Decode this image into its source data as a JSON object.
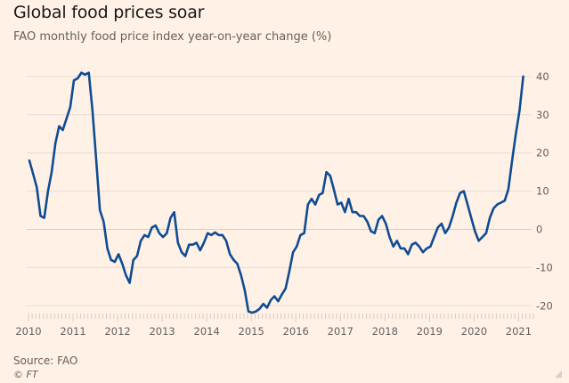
{
  "header": {
    "title": "Global food prices soar",
    "subtitle": "FAO monthly food price index year-on-year change (%)"
  },
  "footer": {
    "source": "Source: FAO",
    "copyright": "© FT"
  },
  "colors": {
    "background": "#fff1e5",
    "line": "#0f4c93",
    "grid": "#e6ddd4",
    "zero_line": "#d4ccc3",
    "text": "#66605c"
  },
  "chart_data": {
    "type": "line",
    "title": "Global food prices soar",
    "subtitle": "FAO monthly food price index year-on-year change (%)",
    "xlabel": "",
    "ylabel": "",
    "ylim": [
      -22,
      42
    ],
    "yticks": [
      40,
      30,
      20,
      10,
      0,
      -10,
      -20
    ],
    "ytick_labels": [
      "40",
      "30",
      "20",
      "10",
      "0",
      "-10",
      "-20"
    ],
    "y_axis_side": "right",
    "xticks": [
      "2010",
      "2011",
      "2012",
      "2013",
      "2014",
      "2015",
      "2016",
      "2017",
      "2018",
      "2019",
      "2020",
      "2021"
    ],
    "x_start": "2010-01",
    "frequency": "monthly",
    "grid": true,
    "legend": "none",
    "series": [
      {
        "name": "FAO food price index YoY change (%)",
        "values": [
          18,
          14.5,
          11,
          3.5,
          3,
          10,
          15,
          22.5,
          27,
          26,
          29,
          32,
          39,
          39.5,
          41,
          40.5,
          41,
          31,
          18,
          5,
          2,
          -5,
          -8,
          -8.5,
          -6.5,
          -9,
          -12,
          -14,
          -8,
          -7,
          -3,
          -1.5,
          -2,
          0.5,
          1,
          -1,
          -2,
          -1,
          3,
          4.5,
          -3.5,
          -6,
          -7,
          -4,
          -4,
          -3.5,
          -5.5,
          -3.5,
          -1,
          -1.5,
          -0.8,
          -1.5,
          -1.5,
          -3,
          -6.5,
          -8,
          -9,
          -12,
          -16,
          -21.5,
          -21.8,
          -21.5,
          -20.8,
          -19.5,
          -20.5,
          -18.5,
          -17.5,
          -18.8,
          -17,
          -15.5,
          -11,
          -6,
          -4.5,
          -1.5,
          -1,
          6.5,
          8,
          6.5,
          9,
          9.5,
          15,
          14,
          10.5,
          6.5,
          7,
          4.5,
          8,
          4.5,
          4.5,
          3.5,
          3.5,
          2,
          -0.5,
          -1,
          2.5,
          3.5,
          1.5,
          -2,
          -4.5,
          -3,
          -5,
          -5,
          -6.5,
          -4,
          -3.5,
          -4.5,
          -6,
          -5,
          -4.5,
          -2,
          0.5,
          1.5,
          -1,
          0.5,
          3.5,
          7,
          9.5,
          10,
          6.5,
          3,
          -0.5,
          -3,
          -2,
          -1,
          3,
          5.5,
          6.5,
          7,
          7.5,
          10.5,
          18,
          25,
          31,
          40
        ]
      }
    ]
  }
}
